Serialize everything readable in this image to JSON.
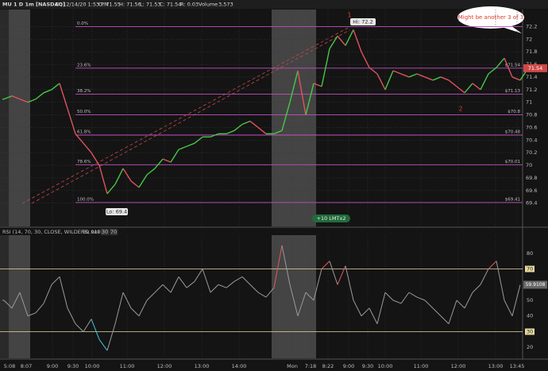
{
  "header": {
    "symbol": "MU 1 D 1m [NASDAQ]",
    "date": "D: 12/14/20 1:53 PM",
    "open": "O: 71.55",
    "high": "H: 71.56",
    "low": "L: 71.53",
    "close": "C: 71.54",
    "range": "R: 0.03",
    "volume_label": "Volume",
    "volume": "3,573"
  },
  "chart_data": [
    {
      "type": "line",
      "ylim": [
        69.22,
        72.42
      ],
      "yticks": [
        69.4,
        69.6,
        69.8,
        70,
        70.2,
        70.4,
        70.6,
        70.8,
        71,
        71.2,
        71.4,
        71.6,
        71.8,
        72,
        72.2
      ],
      "grid": true,
      "x_labels": [
        "5:08",
        "8:07",
        "9:00",
        "9:30",
        "10:00",
        "11:00",
        "12:00",
        "13:00",
        "14:00",
        "Mon",
        "7:18",
        "8:22",
        "9:00",
        "9:30",
        "10:00",
        "11:00",
        "12:00",
        "13:00",
        "13:45"
      ],
      "up_color": "#46c846",
      "down_color": "#e0525e",
      "values": [
        71.05,
        71.1,
        71.05,
        71.0,
        71.05,
        71.15,
        71.2,
        71.3,
        70.9,
        70.5,
        70.35,
        70.2,
        70.0,
        69.55,
        69.7,
        69.95,
        69.75,
        69.65,
        69.85,
        69.95,
        70.1,
        70.05,
        70.25,
        70.3,
        70.35,
        70.45,
        70.45,
        70.5,
        70.5,
        70.55,
        70.65,
        70.7,
        70.6,
        70.5,
        70.5,
        70.55,
        71.0,
        71.5,
        70.8,
        71.3,
        71.25,
        71.85,
        72.05,
        71.9,
        72.15,
        71.8,
        71.55,
        71.45,
        71.2,
        71.5,
        71.45,
        71.4,
        71.45,
        71.4,
        71.35,
        71.4,
        71.35,
        71.25,
        71.15,
        71.3,
        71.2,
        71.45,
        71.55,
        71.7,
        71.4,
        71.35,
        71.54
      ],
      "fib_levels": {
        "color": "#c24fc2",
        "percent_labels": [
          "0.0%",
          "23.6%",
          "38.2%",
          "50.0%",
          "61.8%",
          "78.6%",
          "100.0%"
        ],
        "values": [
          72.2,
          71.54,
          71.13,
          70.8,
          70.48,
          70.01,
          69.41
        ],
        "value_labels": [
          null,
          "$71.54",
          "$71.13",
          "$70.8",
          "$70.48",
          "$70.01",
          "$69.41"
        ]
      },
      "high_label": "Hi: 72.2",
      "low_label": "Lo: 69.4",
      "wave_labels": [
        "1",
        "2"
      ],
      "callout": "Might be another 3 of 3",
      "order_label": "+10 LMTx2"
    },
    {
      "type": "line",
      "title": "RSI (14, 70, 30, CLOSE, WILDERS, no)",
      "ylim": [
        12,
        88
      ],
      "yticks": [
        20,
        30,
        40,
        50,
        60,
        70,
        80
      ],
      "overbought": 70,
      "oversold": 30,
      "color": "#9a9a9a",
      "overbought_color": "#e05a5a",
      "oversold_color": "#3cc8e0",
      "values": [
        50,
        45,
        55,
        40,
        42,
        48,
        60,
        65,
        45,
        35,
        30,
        38,
        25,
        18,
        35,
        55,
        45,
        40,
        50,
        55,
        60,
        55,
        65,
        58,
        62,
        70,
        55,
        60,
        58,
        62,
        65,
        60,
        55,
        52,
        58,
        85,
        60,
        40,
        55,
        50,
        70,
        75,
        60,
        72,
        50,
        40,
        45,
        35,
        55,
        50,
        48,
        55,
        52,
        50,
        45,
        40,
        35,
        50,
        45,
        55,
        60,
        70,
        75,
        50,
        40,
        59.9108
      ]
    }
  ]
}
